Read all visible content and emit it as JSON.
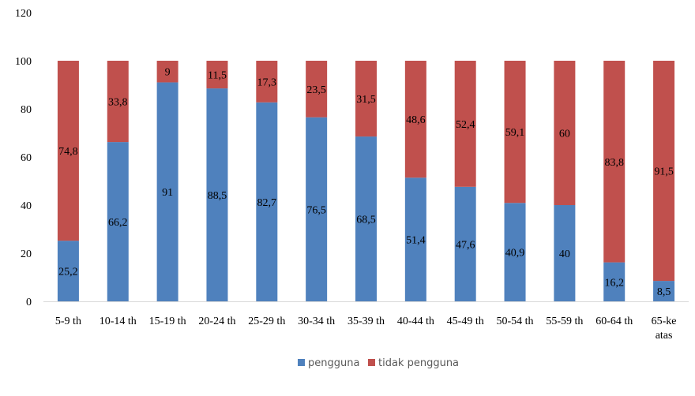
{
  "chart_data": {
    "type": "bar",
    "stacked": true,
    "categories": [
      "5-9 th",
      "10-14 th",
      "15-19 th",
      "20-24 th",
      "25-29 th",
      "30-34 th",
      "35-39 th",
      "40-44 th",
      "45-49 th",
      "50-54 th",
      "55-59 th",
      "60-64 th",
      "65-ke atas"
    ],
    "series": [
      {
        "name": "pengguna",
        "color": "#4f81bd",
        "values": [
          25.2,
          66.2,
          91,
          88.5,
          82.7,
          76.5,
          68.5,
          51.4,
          47.6,
          40.9,
          40,
          16.2,
          8.5
        ],
        "labels": [
          "25,2",
          "66,2",
          "91",
          "88,5",
          "82,7",
          "76,5",
          "68,5",
          "51,4",
          "47,6",
          "40,9",
          "40",
          "16,2",
          "8,5"
        ]
      },
      {
        "name": "tidak pengguna",
        "color": "#c0504d",
        "values": [
          74.8,
          33.8,
          9,
          11.5,
          17.3,
          23.5,
          31.5,
          48.6,
          52.4,
          59.1,
          60,
          83.8,
          91.5
        ],
        "labels": [
          "74,8",
          "33,8",
          "9",
          "11,5",
          "17,3",
          "23,5",
          "31,5",
          "48,6",
          "52,4",
          "59,1",
          "60",
          "83,8",
          "91,5"
        ]
      }
    ],
    "ylim": [
      0,
      120
    ],
    "yticks": [
      "0",
      "20",
      "40",
      "60",
      "80",
      "100",
      "120"
    ],
    "grid": false,
    "legend": "bottom",
    "title": "",
    "xlabel": "",
    "ylabel": ""
  }
}
